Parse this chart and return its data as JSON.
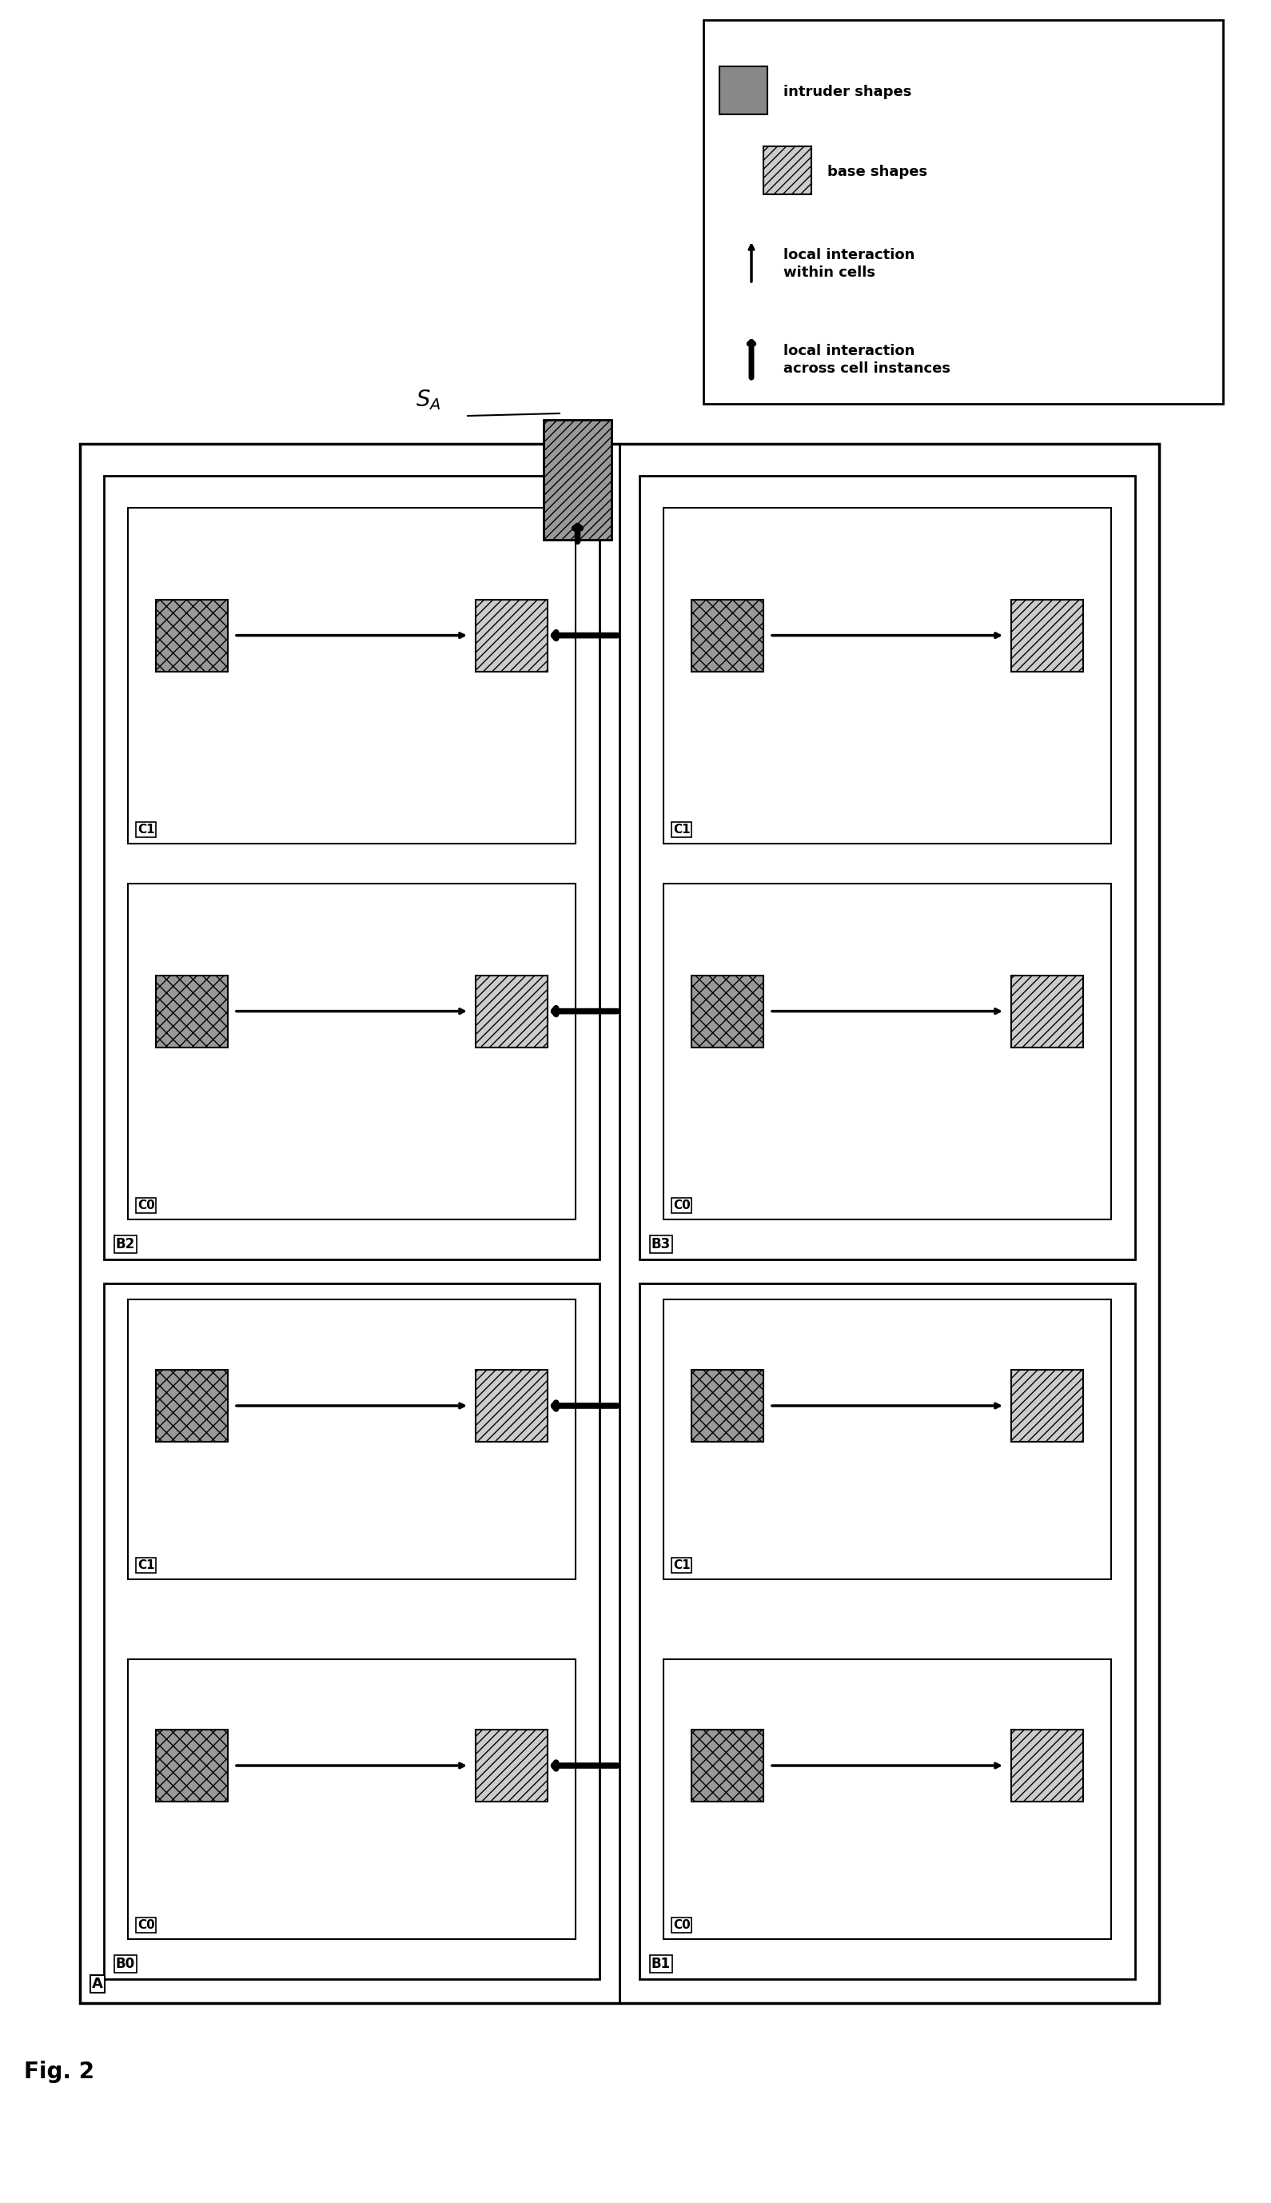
{
  "fig_label": "Fig. 2",
  "cell_A_label": "A",
  "cell_B_labels": [
    "B2",
    "B3",
    "B0",
    "B1"
  ],
  "cell_C_labels": [
    "C1",
    "C0"
  ],
  "legend_entries": [
    {
      "label": "intruder shapes",
      "type": "dark_box"
    },
    {
      "label": "base shapes",
      "type": "hatch_box"
    },
    {
      "label": "local interaction\nwithin cells",
      "type": "open_arrow"
    },
    {
      "label": "local interaction\nacross cell instances",
      "type": "solid_arrow"
    }
  ],
  "bg_color": "#ffffff",
  "dark_fill": "#888888",
  "hatch_fill": "#cccccc",
  "box_edge": "#000000",
  "arrow_color": "#000000"
}
